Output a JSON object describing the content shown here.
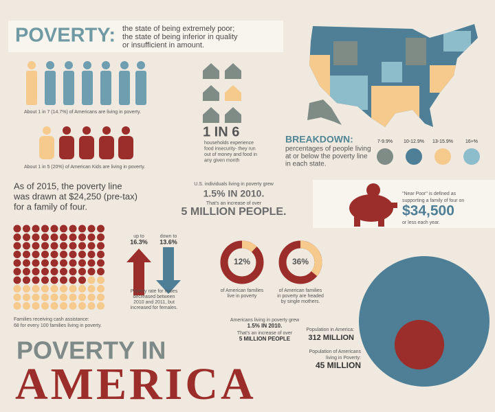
{
  "definition": {
    "word": "POVERTY:",
    "lines": [
      "the state of being extremely poor;",
      "the state of being inferior in quality",
      "or insufficient in amount."
    ]
  },
  "adults_caption": "About 1 in 7 (14.7%) of Americans are living in poverty.",
  "kids_caption": "About 1 in 5 (20%) of American Kids are living in poverty.",
  "food": {
    "big": "1 IN 6",
    "lines": [
      "households experience",
      "food insecurity- they run",
      "out of money and food in",
      "any given month"
    ]
  },
  "breakdown": {
    "title": "BREAKDOWN:",
    "lines": [
      "percentages of people living",
      "at or below the poverty line",
      "in each state."
    ],
    "legend": [
      {
        "label": "7-9.9%",
        "color": "#7f8c86"
      },
      {
        "label": "10-12.9%",
        "color": "#4e7f96"
      },
      {
        "label": "13-15.9%",
        "color": "#f6c98c"
      },
      {
        "label": "16+%",
        "color": "#8dbccb"
      }
    ]
  },
  "poverty_line": [
    "As of 2015, the poverty line",
    "was drawn at $24,250 (pre-tax)",
    "for a family of four."
  ],
  "growth": {
    "intro": "U.S. individuals living in poverty grew",
    "big1": "1.5% IN 2010.",
    "mid": "That's an increase of over",
    "big2": "5 MILLION PEOPLE."
  },
  "near_poor": {
    "lines": [
      "\"Near Poor\" is defined as",
      "supporting a family of four on"
    ],
    "amount": "$34,500",
    "tail": "or less each year."
  },
  "assistance": {
    "filled": 68,
    "total": 100,
    "lines": [
      "Families receiving cash assistance:",
      "68 for every 100 families living in poverty."
    ]
  },
  "males": {
    "up_pre": "up to",
    "up": "16.3%",
    "down_pre": "down to",
    "down": "13.6%",
    "lines": [
      "Poverty rate for males",
      "decreased between",
      "2010 and 2011, but",
      "increased for females."
    ]
  },
  "donuts": [
    {
      "value": 12,
      "label": "12%",
      "lines": [
        "of American families",
        "live in poverty"
      ]
    },
    {
      "value": 36,
      "label": "36%",
      "lines": [
        "of American families",
        "in poverty are headed",
        "by single mothers."
      ]
    }
  ],
  "growth2": {
    "intro": "Americans living in poverty grew",
    "big1": "1.5% IN 2010.",
    "mid": "That's an increase of over",
    "big2": "5 MILLION PEOPLE"
  },
  "population": [
    {
      "value": 312,
      "lines": [
        "Population in America:"
      ],
      "value_label": "312 MILLION",
      "color": "#4e7f96"
    },
    {
      "value": 45,
      "lines": [
        "Population of Americans",
        "living in Poverty:"
      ],
      "value_label": "45 MILLION",
      "color": "#9b2d2a"
    }
  ],
  "title": {
    "line1": "POVERTY IN",
    "line2": "AMERICA"
  }
}
